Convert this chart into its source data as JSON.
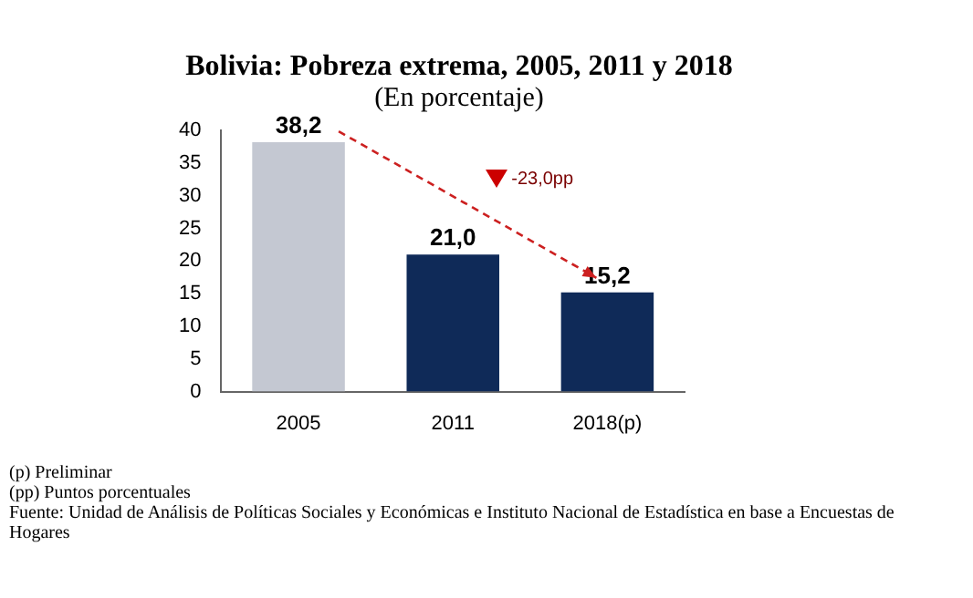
{
  "chart_data": {
    "type": "bar",
    "title": "Bolivia: Pobreza extrema, 2005, 2011 y 2018",
    "subtitle": "(En porcentaje)",
    "categories": [
      "2005",
      "2011",
      "2018(p)"
    ],
    "values": [
      38.2,
      21.0,
      15.2
    ],
    "colors": [
      "#c4c8d2",
      "#0f2a58",
      "#0f2a58"
    ],
    "value_labels": [
      "38,2",
      "21,0",
      "15,2"
    ],
    "ylim": [
      0,
      40
    ],
    "yticks": [
      0,
      5,
      10,
      15,
      20,
      25,
      30,
      35,
      40
    ],
    "grid": false,
    "legend": false,
    "annotations": [
      "-23,0pp",
      "(p) Preliminar",
      "(pp) Puntos porcentuales",
      "Fuente: Unidad de Análisis de Políticas Sociales y Económicas e Instituto Nacional de Estadística en base a Encuestas de Hogares"
    ]
  }
}
